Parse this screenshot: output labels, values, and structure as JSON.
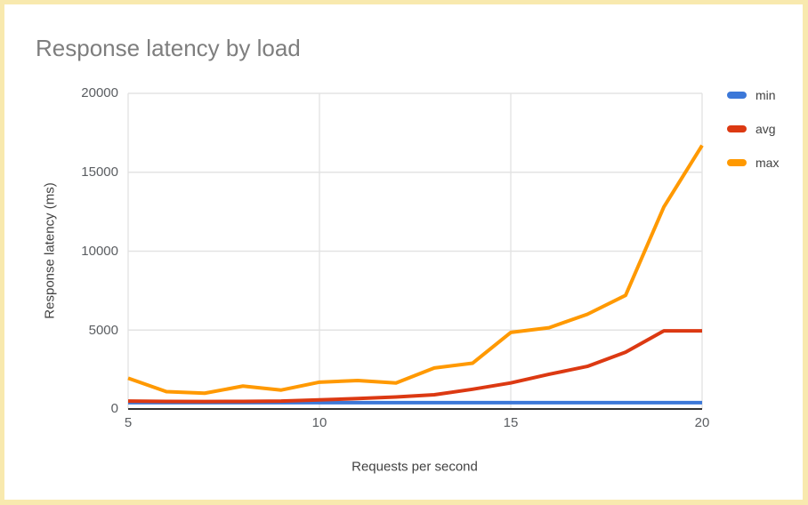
{
  "page": {
    "frame_color": "#f8e9ae",
    "background_color": "#ffffff"
  },
  "chart_data": {
    "type": "line",
    "title": "Response latency by load",
    "xlabel": "Requests per second",
    "ylabel": "Response latency (ms)",
    "x": [
      5,
      6,
      7,
      8,
      9,
      10,
      11,
      12,
      13,
      14,
      15,
      16,
      17,
      18,
      19,
      20
    ],
    "series": [
      {
        "name": "min",
        "color": "#3c78d8",
        "values": [
          400,
          400,
          400,
          400,
          400,
          400,
          400,
          400,
          400,
          400,
          400,
          400,
          400,
          400,
          400,
          400
        ]
      },
      {
        "name": "avg",
        "color": "#dc3912",
        "values": [
          500,
          480,
          470,
          480,
          500,
          580,
          660,
          760,
          900,
          1250,
          1650,
          2200,
          2700,
          3600,
          4950,
          4950
        ]
      },
      {
        "name": "max",
        "color": "#ff9900",
        "values": [
          1950,
          1100,
          1000,
          1450,
          1200,
          1700,
          1800,
          1650,
          2600,
          2900,
          4850,
          5150,
          6000,
          7200,
          12800,
          16700
        ]
      }
    ],
    "xlim": [
      5,
      20
    ],
    "ylim": [
      0,
      20000
    ],
    "xticks": [
      5,
      10,
      15,
      20
    ],
    "yticks": [
      0,
      5000,
      10000,
      15000,
      20000
    ],
    "xtick_labels": [
      "5",
      "10",
      "15",
      "20"
    ],
    "ytick_labels_top_down": [
      "20000",
      "15000",
      "10000",
      "5000",
      "0"
    ],
    "grid": true,
    "legend_position": "right",
    "colors": {
      "title_text": "#7e7e7e",
      "tick_label_text": "#5a5d61",
      "axis_title_text": "#424242",
      "legend_label_text": "#424242",
      "gridline": "#e3e3e3",
      "baseline": "#333333"
    }
  }
}
